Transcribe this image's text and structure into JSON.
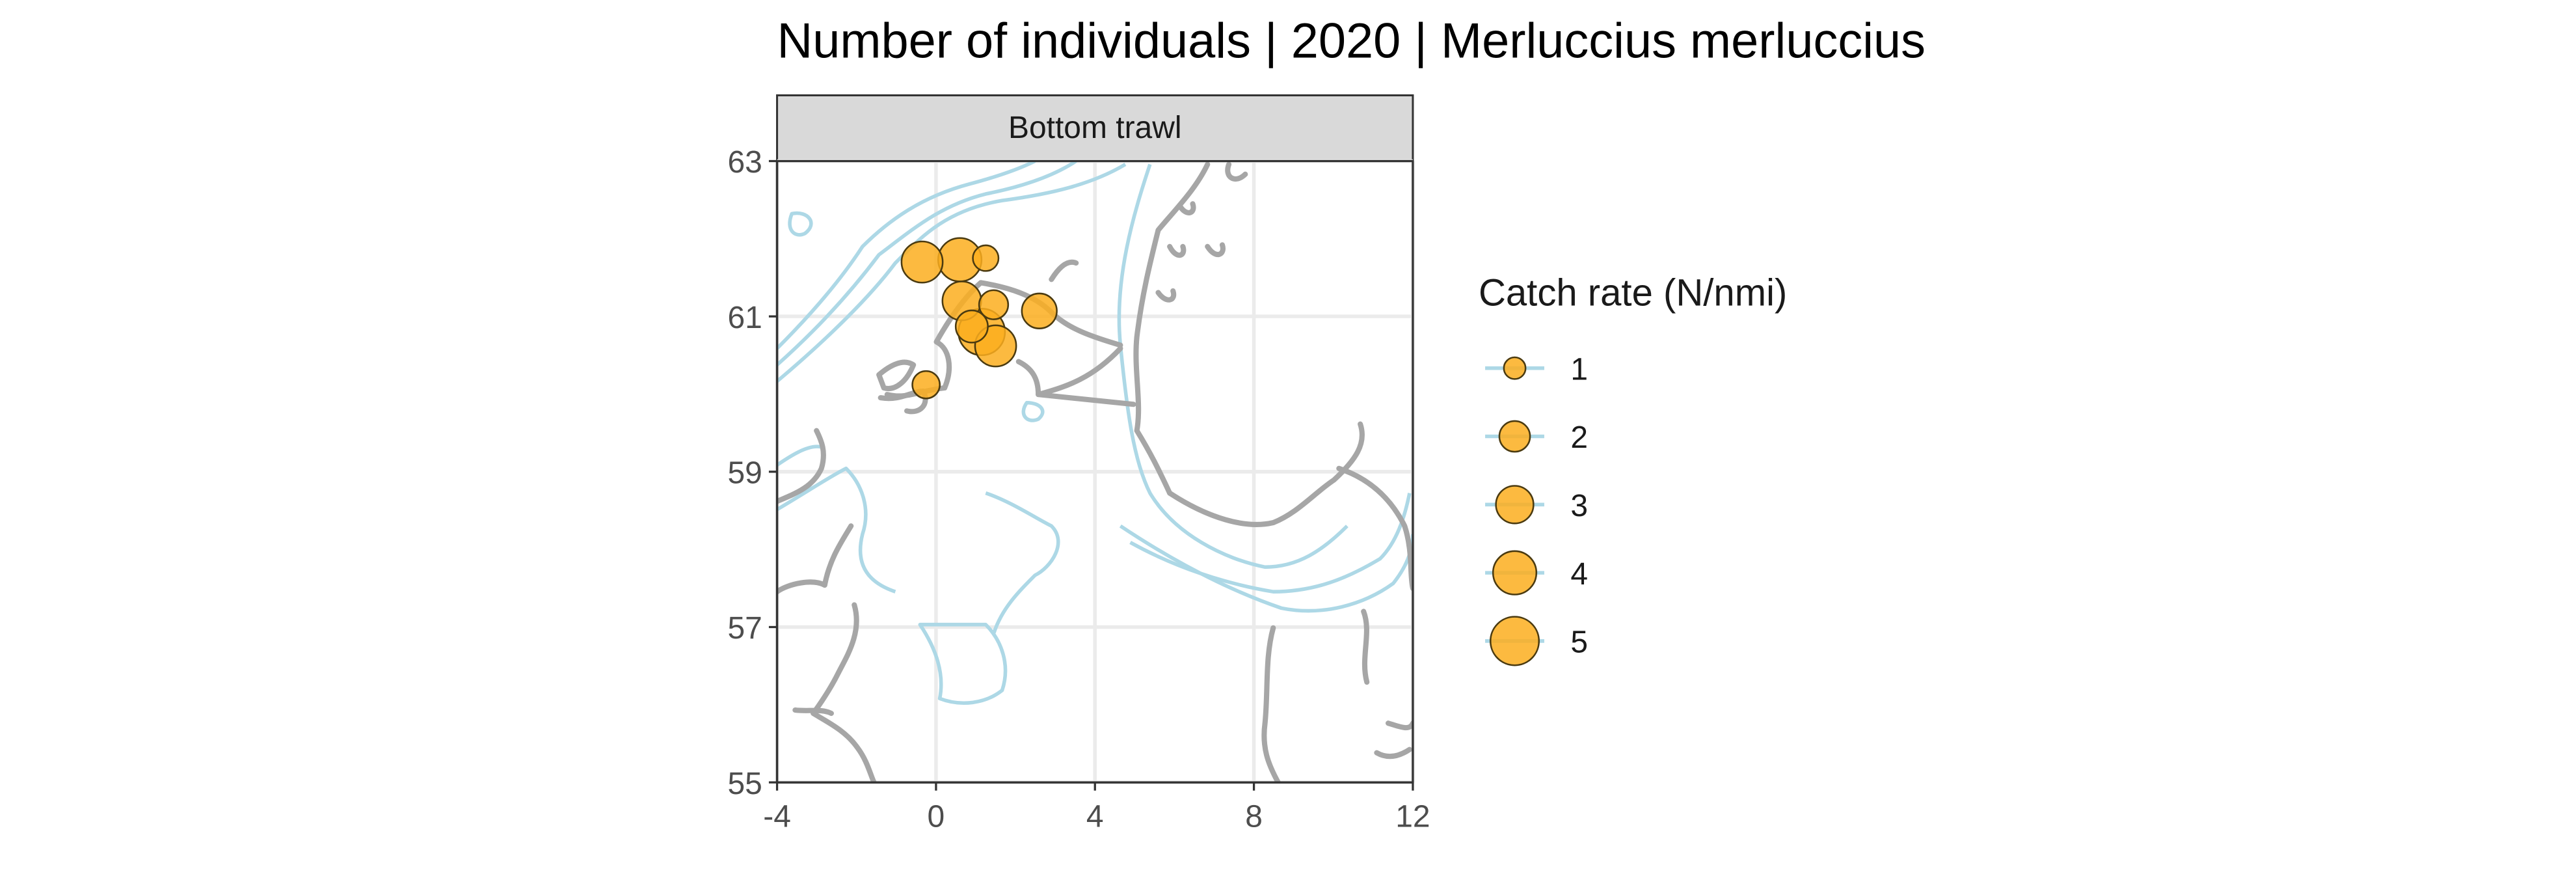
{
  "title": "Number of individuals | 2020 | Merluccius merluccius",
  "chart_data": {
    "type": "scatter",
    "subtype": "bubble map",
    "title": "Number of individuals | 2020 | Merluccius merluccius",
    "facet": "Bottom trawl",
    "xlabel": "",
    "ylabel": "",
    "xlim": [
      -4,
      12
    ],
    "ylim": [
      55,
      63
    ],
    "x_ticks": [
      -4,
      0,
      4,
      8,
      12
    ],
    "x_tick_labels": [
      "-4",
      "0",
      "4",
      "8",
      "12"
    ],
    "y_ticks": [
      55,
      57,
      59,
      61,
      63
    ],
    "y_tick_labels": [
      "55",
      "57",
      "59",
      "61",
      "63"
    ],
    "grid": true,
    "legend": {
      "title": "Catch rate (N/nmi)",
      "placement": "right",
      "sizes": [
        1,
        2,
        3,
        4,
        5
      ],
      "labels": [
        "1",
        "2",
        "3",
        "4",
        "5"
      ]
    },
    "points": [
      {
        "lon": -0.35,
        "lat": 61.7,
        "value": 3.6
      },
      {
        "lon": 0.6,
        "lat": 61.73,
        "value": 4.0
      },
      {
        "lon": 1.25,
        "lat": 61.75,
        "value": 1.4
      },
      {
        "lon": 0.65,
        "lat": 61.2,
        "value": 3.2
      },
      {
        "lon": 1.45,
        "lat": 61.15,
        "value": 1.8
      },
      {
        "lon": 2.6,
        "lat": 61.07,
        "value": 2.6
      },
      {
        "lon": 0.9,
        "lat": 60.87,
        "value": 2.2
      },
      {
        "lon": 1.15,
        "lat": 60.8,
        "value": 4.6
      },
      {
        "lon": 1.5,
        "lat": 60.62,
        "value": 3.6
      },
      {
        "lon": -0.25,
        "lat": 60.12,
        "value": 1.6
      }
    ],
    "colors": {
      "point_fill": "#FBAE1E",
      "point_stroke": "#4A3A10",
      "coastline": "#A6A6A6",
      "depth_contour": "#ADD8E6",
      "grid": "#EBEBEB",
      "facet_strip": "#D9D9D9"
    }
  }
}
